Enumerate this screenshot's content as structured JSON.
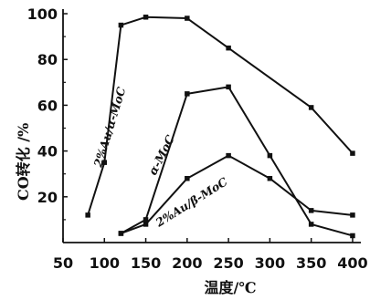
{
  "chart_data": {
    "type": "line",
    "title": "",
    "xlabel": "温度/℃",
    "ylabel": "CO转化 /%",
    "xlim": [
      50,
      410
    ],
    "ylim": [
      0,
      102
    ],
    "x_ticks": [
      "50",
      "100",
      "150",
      "200",
      "250",
      "300",
      "350",
      "400"
    ],
    "y_ticks": [
      "20",
      "40",
      "60",
      "80",
      "100"
    ],
    "grid": false,
    "legend": "none",
    "series": [
      {
        "name": "2%Au/α-MoC",
        "marker": "square",
        "points": [
          [
            80,
            12
          ],
          [
            100,
            35
          ],
          [
            120,
            95
          ],
          [
            150,
            98.5
          ],
          [
            200,
            98
          ],
          [
            250,
            85
          ],
          [
            350,
            59
          ],
          [
            400,
            39
          ]
        ]
      },
      {
        "name": "α-MoC",
        "marker": "square",
        "points": [
          [
            120,
            4
          ],
          [
            150,
            10
          ],
          [
            200,
            65
          ],
          [
            250,
            68
          ],
          [
            300,
            38
          ],
          [
            350,
            8
          ],
          [
            400,
            3
          ]
        ]
      },
      {
        "name": "2%Au/β-MoC",
        "marker": "square",
        "points": [
          [
            120,
            4
          ],
          [
            150,
            8
          ],
          [
            200,
            28
          ],
          [
            250,
            38
          ],
          [
            300,
            28
          ],
          [
            350,
            14
          ],
          [
            400,
            12
          ]
        ]
      }
    ]
  }
}
